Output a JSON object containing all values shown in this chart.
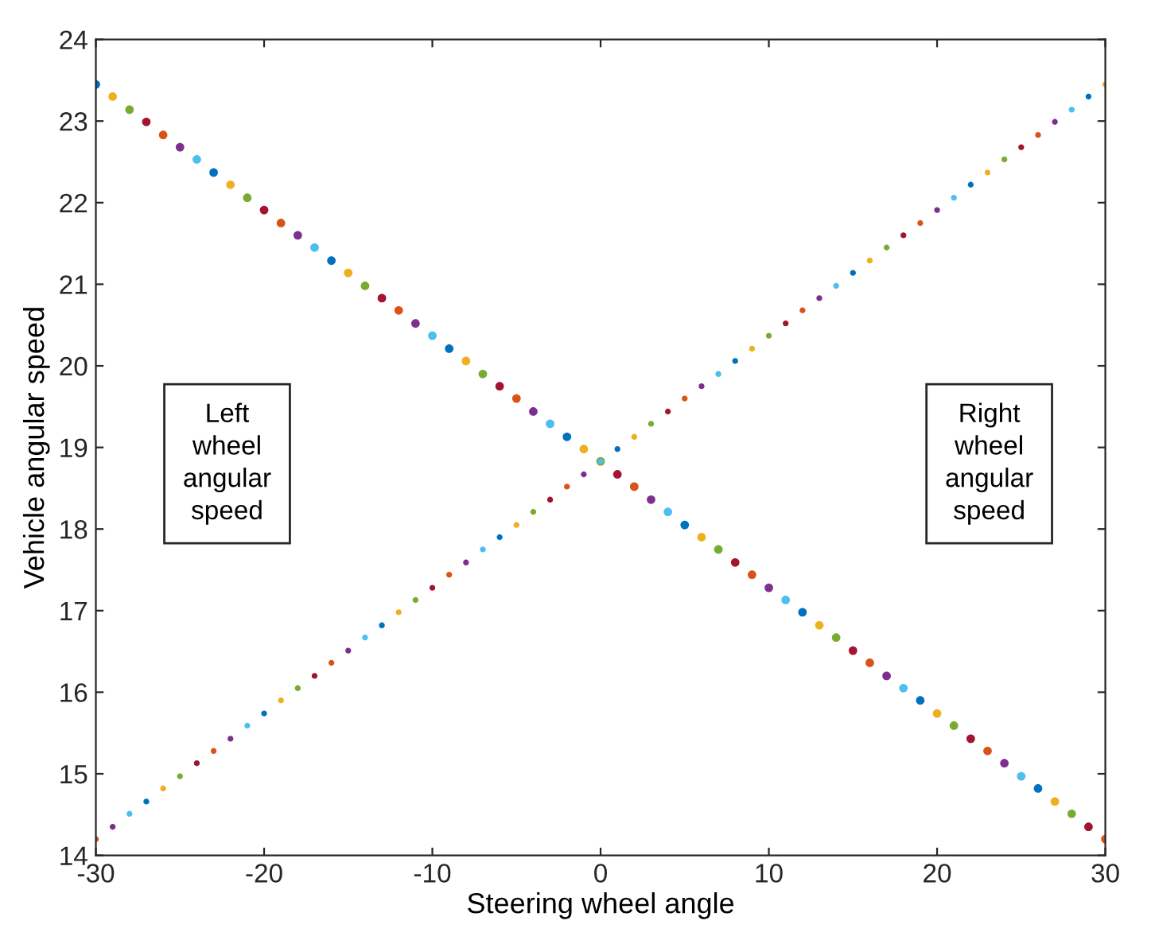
{
  "chart_data": {
    "type": "scatter",
    "xlabel": "Steering wheel angle",
    "ylabel": "Vehicle angular speed",
    "x": [
      -30,
      -29,
      -28,
      -27,
      -26,
      -25,
      -24,
      -23,
      -22,
      -21,
      -20,
      -19,
      -18,
      -17,
      -16,
      -15,
      -14,
      -13,
      -12,
      -11,
      -10,
      -9,
      -8,
      -7,
      -6,
      -5,
      -4,
      -3,
      -2,
      -1,
      0,
      1,
      2,
      3,
      4,
      5,
      6,
      7,
      8,
      9,
      10,
      11,
      12,
      13,
      14,
      15,
      16,
      17,
      18,
      19,
      20,
      21,
      22,
      23,
      24,
      25,
      26,
      27,
      28,
      29,
      30
    ],
    "series": [
      {
        "values": [
          23.45,
          23.3,
          23.14,
          22.99,
          22.83,
          22.68,
          22.53,
          22.37,
          22.22,
          22.06,
          21.91,
          21.75,
          21.6,
          21.45,
          21.29,
          21.14,
          20.98,
          20.83,
          20.68,
          20.52,
          20.37,
          20.21,
          20.06,
          19.9,
          19.75,
          19.6,
          19.44,
          19.29,
          19.13,
          18.98,
          18.83,
          18.67,
          18.52,
          18.36,
          18.21,
          18.05,
          17.9,
          17.75,
          17.59,
          17.44,
          17.28,
          17.13,
          16.98,
          16.82,
          16.67,
          16.51,
          16.36,
          16.2,
          16.05,
          15.9,
          15.74,
          15.59,
          15.43,
          15.28,
          15.13,
          14.97,
          14.82,
          14.66,
          14.51,
          14.35,
          14.2
        ],
        "colors": [
          "#0072bd",
          "#edb120",
          "#77ac30",
          "#a2142f",
          "#d95319",
          "#7e2f8e",
          "#4dbeee",
          "#0072bd",
          "#edb120",
          "#77ac30",
          "#a2142f",
          "#d95319",
          "#7e2f8e",
          "#4dbeee",
          "#0072bd",
          "#edb120",
          "#77ac30",
          "#a2142f",
          "#d95319",
          "#7e2f8e",
          "#4dbeee",
          "#0072bd",
          "#edb120",
          "#77ac30",
          "#a2142f",
          "#d95319",
          "#7e2f8e",
          "#4dbeee",
          "#0072bd",
          "#edb120",
          "#77ac30",
          "#a2142f",
          "#d95319",
          "#7e2f8e",
          "#4dbeee",
          "#0072bd",
          "#edb120",
          "#77ac30",
          "#a2142f",
          "#d95319",
          "#7e2f8e",
          "#4dbeee",
          "#0072bd",
          "#edb120",
          "#77ac30",
          "#a2142f",
          "#d95319",
          "#7e2f8e",
          "#4dbeee",
          "#0072bd",
          "#edb120",
          "#77ac30",
          "#a2142f",
          "#d95319",
          "#7e2f8e",
          "#4dbeee",
          "#0072bd",
          "#edb120",
          "#77ac30",
          "#a2142f",
          "#d95319"
        ]
      },
      {
        "values": [
          14.2,
          14.35,
          14.51,
          14.66,
          14.82,
          14.97,
          15.13,
          15.28,
          15.43,
          15.59,
          15.74,
          15.9,
          16.05,
          16.2,
          16.36,
          16.51,
          16.67,
          16.82,
          16.98,
          17.13,
          17.28,
          17.44,
          17.59,
          17.75,
          17.9,
          18.05,
          18.21,
          18.36,
          18.52,
          18.67,
          18.83,
          18.98,
          19.13,
          19.29,
          19.44,
          19.6,
          19.75,
          19.9,
          20.06,
          20.21,
          20.37,
          20.52,
          20.68,
          20.83,
          20.98,
          21.14,
          21.29,
          21.45,
          21.6,
          21.75,
          21.91,
          22.06,
          22.22,
          22.37,
          22.53,
          22.68,
          22.83,
          22.99,
          23.14,
          23.3,
          23.45
        ],
        "colors": [
          "#d95319",
          "#7e2f8e",
          "#4dbeee",
          "#0072bd",
          "#edb120",
          "#77ac30",
          "#a2142f",
          "#d95319",
          "#7e2f8e",
          "#4dbeee",
          "#0072bd",
          "#edb120",
          "#77ac30",
          "#a2142f",
          "#d95319",
          "#7e2f8e",
          "#4dbeee",
          "#0072bd",
          "#edb120",
          "#77ac30",
          "#a2142f",
          "#d95319",
          "#7e2f8e",
          "#4dbeee",
          "#0072bd",
          "#edb120",
          "#77ac30",
          "#a2142f",
          "#d95319",
          "#7e2f8e",
          "#4dbeee",
          "#0072bd",
          "#edb120",
          "#77ac30",
          "#a2142f",
          "#d95319",
          "#7e2f8e",
          "#4dbeee",
          "#0072bd",
          "#edb120",
          "#77ac30",
          "#a2142f",
          "#d95319",
          "#7e2f8e",
          "#4dbeee",
          "#0072bd",
          "#edb120",
          "#77ac30",
          "#a2142f",
          "#d95319",
          "#7e2f8e",
          "#4dbeee",
          "#0072bd",
          "#edb120",
          "#77ac30",
          "#a2142f",
          "#d95319",
          "#7e2f8e",
          "#4dbeee",
          "#0072bd",
          "#edb120"
        ]
      }
    ],
    "annotations": [
      "Left\nwheel\nangular\nspeed",
      "Right\nwheel\nangular\nspeed"
    ],
    "xlim": [
      -30,
      30
    ],
    "xticks": [
      -30,
      -20,
      -10,
      0,
      10,
      20,
      30
    ],
    "ylim": [
      14,
      24
    ],
    "yticks": [
      14,
      15,
      16,
      17,
      18,
      19,
      20,
      21,
      22,
      23,
      24
    ],
    "grid": false,
    "marker": "circle"
  }
}
